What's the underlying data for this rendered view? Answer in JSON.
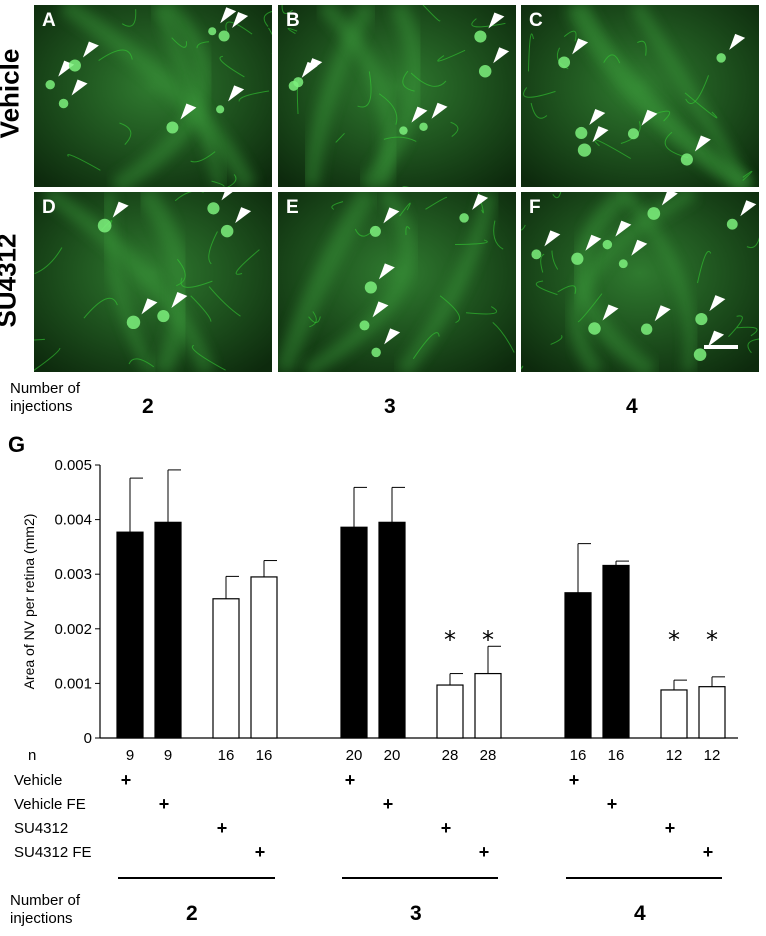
{
  "figure": {
    "rows": [
      {
        "label": "Vehicle",
        "panels": [
          "A",
          "B",
          "C"
        ]
      },
      {
        "label": "SU4312",
        "panels": [
          "D",
          "E",
          "F"
        ]
      }
    ],
    "injections_label_line1": "Number of",
    "injections_label_line2": "injections",
    "injection_numbers": [
      "2",
      "3",
      "4"
    ],
    "panel_g_label": "G",
    "colors": {
      "fluorescence": "#33cc33",
      "background": "#0d2a0d"
    }
  },
  "chart_data": {
    "type": "bar",
    "ylabel": "Area of NV per retina (mm2)",
    "ylim": [
      0,
      0.005
    ],
    "yticks": [
      "0",
      "0.001",
      "0.002",
      "0.003",
      "0.004",
      "0.005"
    ],
    "yticks_values": [
      0,
      0.001,
      0.002,
      0.003,
      0.004,
      0.005
    ],
    "groups": [
      "2",
      "3",
      "4"
    ],
    "series": [
      {
        "name": "Vehicle",
        "fill": "#000000",
        "values": [
          0.00377,
          0.00386,
          0.00266
        ],
        "errors": [
          0.00099,
          0.00073,
          0.0009
        ]
      },
      {
        "name": "Vehicle FE",
        "fill": "#000000",
        "values": [
          0.00395,
          0.00395,
          0.00316
        ],
        "errors": [
          0.00096,
          0.00064,
          8e-05
        ]
      },
      {
        "name": "SU4312",
        "fill": "#ffffff",
        "values": [
          0.00255,
          0.00097,
          0.00088
        ],
        "errors": [
          0.00041,
          0.00021,
          0.00018
        ]
      },
      {
        "name": "SU4312 FE",
        "fill": "#ffffff",
        "values": [
          0.00295,
          0.00118,
          0.00094
        ],
        "errors": [
          0.0003,
          0.0005,
          0.00018
        ]
      }
    ],
    "significance_marker": "*",
    "significant_groups": [
      "3",
      "4"
    ],
    "n_label": "n",
    "n_values": [
      [
        "9",
        "9",
        "16",
        "16"
      ],
      [
        "20",
        "20",
        "28",
        "28"
      ],
      [
        "16",
        "16",
        "12",
        "12"
      ]
    ],
    "plus_sign": "+"
  }
}
